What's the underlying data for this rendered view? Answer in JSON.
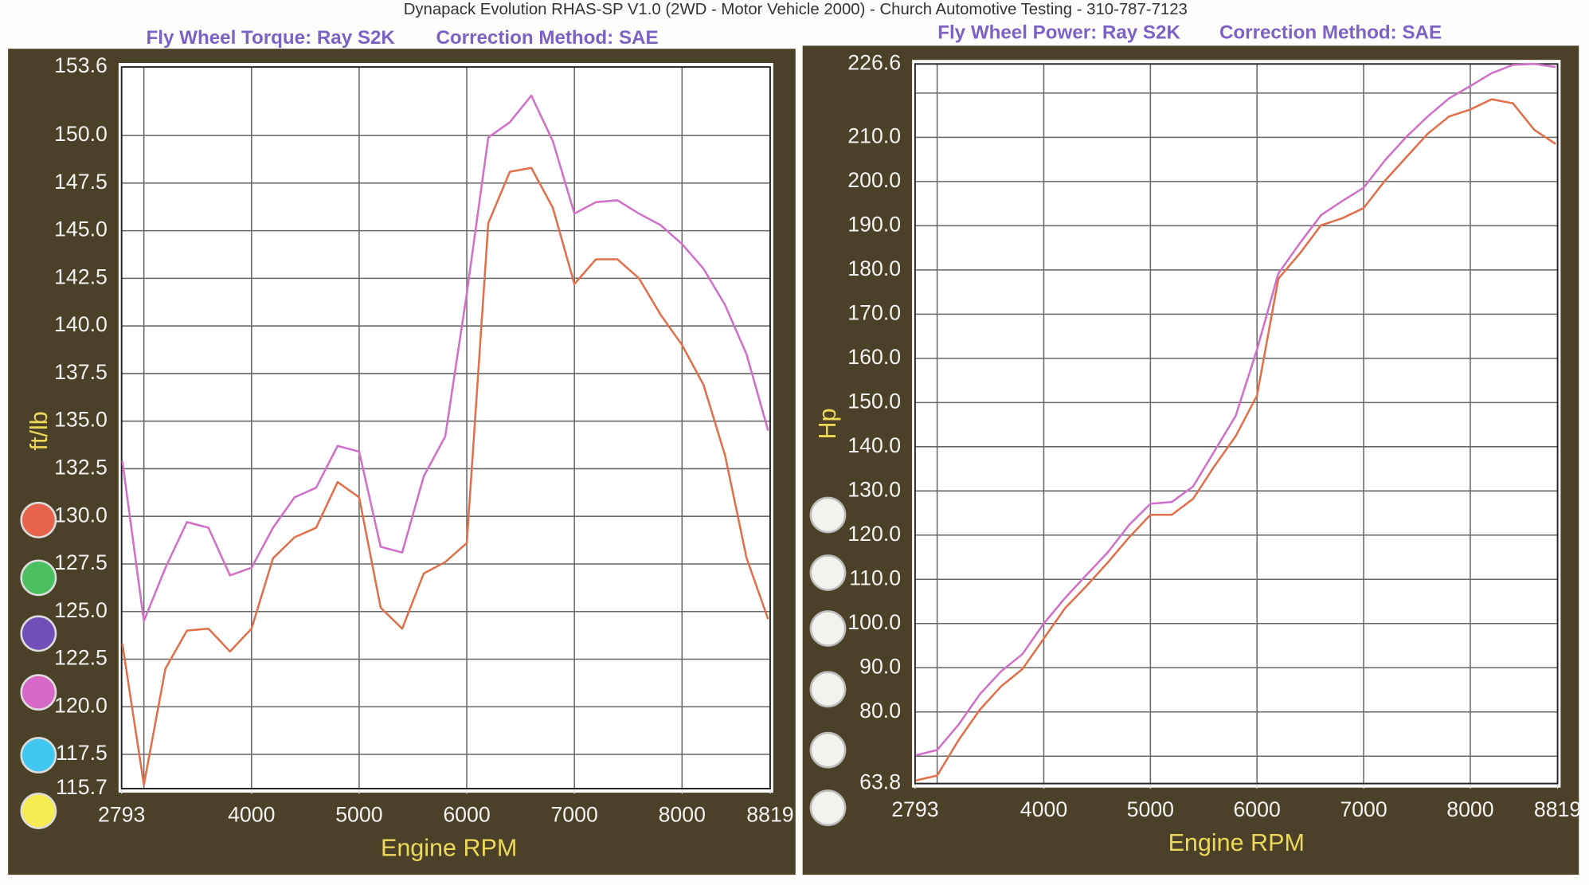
{
  "header": {
    "title": "Dynapack Evolution RHAS-SP V1.0  (2WD - Motor Vehicle 2000) - Church Automotive Testing - 310-787-7123"
  },
  "chart_data": [
    {
      "type": "line",
      "title": "Fly Wheel Torque: Ray S2K",
      "subtitle": "Correction Method: SAE",
      "x_label": "Engine RPM",
      "y_label": "ft/lb",
      "xlim": [
        2793,
        8819
      ],
      "xticks": [
        2793,
        4000,
        5000,
        6000,
        7000,
        8000,
        8819
      ],
      "xgrid": [
        3000,
        4000,
        5000,
        6000,
        7000,
        8000
      ],
      "ylim": [
        115.7,
        153.6
      ],
      "yticks": [
        115.7,
        117.5,
        {
          "value": 120,
          "label": "120.0"
        },
        122.5,
        {
          "value": 125,
          "label": "125.0"
        },
        127.5,
        {
          "value": 130,
          "label": "130.0"
        },
        132.5,
        {
          "value": 135,
          "label": "135.0"
        },
        137.5,
        {
          "value": 140,
          "label": "140.0"
        },
        142.5,
        {
          "value": 145,
          "label": "145.0"
        },
        147.5,
        {
          "value": 150,
          "label": "150.0"
        },
        153.6
      ],
      "ygrid": [],
      "x": [
        2800,
        3000,
        3200,
        3400,
        3600,
        3800,
        4000,
        4200,
        4400,
        4600,
        4800,
        5000,
        5200,
        5400,
        5600,
        5800,
        6000,
        6200,
        6400,
        6600,
        6800,
        7000,
        7200,
        7400,
        7600,
        7800,
        8000,
        8200,
        8400,
        8600,
        8800
      ],
      "series": [
        {
          "color": "#d070c8",
          "values": [
            132.9,
            124.5,
            127.3,
            129.7,
            129.4,
            126.9,
            127.3,
            129.4,
            131.0,
            131.5,
            133.7,
            133.4,
            128.4,
            128.1,
            132.1,
            134.2,
            141.7,
            149.9,
            150.7,
            152.1,
            149.7,
            145.9,
            146.5,
            146.6,
            145.9,
            145.3,
            144.3,
            143.0,
            141.1,
            138.5,
            134.5
          ]
        },
        {
          "color": "#e0704c",
          "values": [
            123.3,
            115.9,
            122.0,
            124.0,
            124.1,
            122.9,
            124.1,
            127.8,
            128.9,
            129.4,
            131.8,
            131.0,
            125.2,
            124.1,
            127.0,
            127.6,
            128.6,
            145.4,
            148.1,
            148.3,
            146.2,
            142.2,
            143.5,
            143.5,
            142.5,
            140.6,
            139.0,
            136.9,
            133.2,
            127.8,
            124.6
          ]
        }
      ]
    },
    {
      "type": "line",
      "title": "Fly Wheel Power: Ray S2K",
      "subtitle": "Correction Method: SAE",
      "x_label": "Engine RPM",
      "y_label": "Hp",
      "xlim": [
        2793,
        8819
      ],
      "xticks": [
        2793,
        4000,
        5000,
        6000,
        7000,
        8000,
        8819
      ],
      "xgrid": [
        3000,
        4000,
        5000,
        6000,
        7000,
        8000
      ],
      "ylim": [
        63.8,
        226.6
      ],
      "yticks": [
        63.8,
        {
          "value": 80,
          "label": "80.0"
        },
        {
          "value": 90,
          "label": "90.0"
        },
        {
          "value": 100,
          "label": "100.0"
        },
        {
          "value": 110,
          "label": "110.0"
        },
        {
          "value": 120,
          "label": "120.0"
        },
        {
          "value": 130,
          "label": "130.0"
        },
        {
          "value": 140,
          "label": "140.0"
        },
        {
          "value": 150,
          "label": "150.0"
        },
        {
          "value": 160,
          "label": "160.0"
        },
        {
          "value": 170,
          "label": "170.0"
        },
        {
          "value": 180,
          "label": "180.0"
        },
        {
          "value": 190,
          "label": "190.0"
        },
        {
          "value": 200,
          "label": "200.0"
        },
        {
          "value": 210,
          "label": "210.0"
        },
        226.6
      ],
      "ygrid": [
        70,
        220
      ],
      "x": [
        2800,
        3000,
        3200,
        3400,
        3600,
        3800,
        4000,
        4200,
        4400,
        4600,
        4800,
        5000,
        5200,
        5400,
        5600,
        5800,
        6000,
        6200,
        6400,
        6600,
        6800,
        7000,
        7200,
        7400,
        7600,
        7800,
        8000,
        8200,
        8400,
        8600,
        8800
      ],
      "series": [
        {
          "color": "#d070c8",
          "values": [
            70.2,
            71.4,
            77.1,
            84.0,
            89.2,
            93.1,
            100.0,
            105.8,
            111.0,
            116.1,
            122.3,
            127.1,
            127.5,
            131.0,
            139.0,
            147.0,
            162.0,
            179.2,
            186.0,
            192.4,
            195.6,
            198.6,
            204.8,
            210.1,
            214.7,
            218.8,
            221.6,
            224.5,
            226.4,
            226.6,
            225.9
          ]
        },
        {
          "color": "#e0704c",
          "values": [
            64.5,
            65.6,
            73.6,
            80.5,
            85.8,
            89.7,
            96.6,
            103.5,
            108.5,
            113.8,
            119.5,
            124.6,
            124.6,
            128.2,
            135.6,
            142.4,
            151.6,
            178.0,
            183.7,
            190.1,
            191.7,
            194.0,
            200.2,
            205.5,
            210.8,
            214.7,
            216.3,
            218.6,
            217.7,
            211.7,
            208.5
          ]
        }
      ]
    }
  ]
}
